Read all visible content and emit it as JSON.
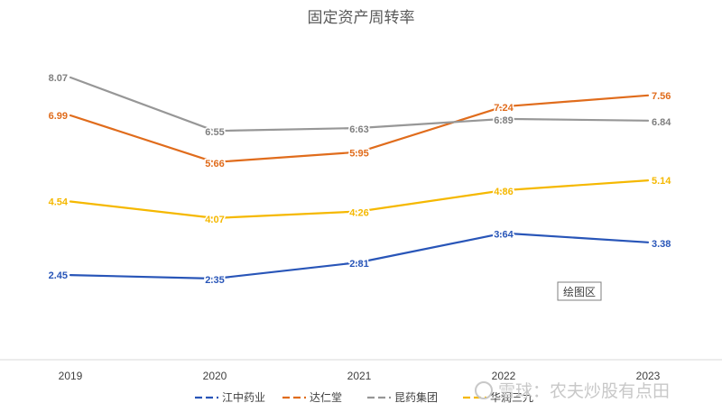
{
  "chart_data": {
    "type": "line",
    "title": "固定资产周转率",
    "categories": [
      "2019",
      "2020",
      "2021",
      "2022",
      "2023"
    ],
    "ylim": [
      0,
      9
    ],
    "grid": false,
    "legend_position": "bottom",
    "series": [
      {
        "name": "江中药业",
        "color": "#2855b8",
        "values": [
          2.45,
          2.35,
          2.81,
          3.64,
          3.38
        ],
        "labels": [
          "2.45",
          "2.35",
          "2.81",
          "3.64",
          "3.38"
        ]
      },
      {
        "name": "达仁堂",
        "color": "#e06c1c",
        "values": [
          6.99,
          5.66,
          5.95,
          7.24,
          7.56
        ],
        "labels": [
          "6.99",
          "5.66",
          "5.95",
          "7.24",
          "7.56"
        ]
      },
      {
        "name": "昆药集团",
        "color": "#979797",
        "values": [
          8.07,
          6.55,
          6.63,
          6.89,
          6.84
        ],
        "labels": [
          "8.07",
          "6.55",
          "6.63",
          "6.89",
          "6.84"
        ]
      },
      {
        "name": "华润三九",
        "color": "#f5b800",
        "values": [
          4.54,
          4.07,
          4.26,
          4.86,
          5.14
        ],
        "labels": [
          "4.54",
          "4.07",
          "4.26",
          "4.86",
          "5.14"
        ]
      }
    ]
  },
  "tooltip": {
    "text": "绘图区"
  },
  "watermark": {
    "text": "雪球：农夫炒股有点田"
  }
}
